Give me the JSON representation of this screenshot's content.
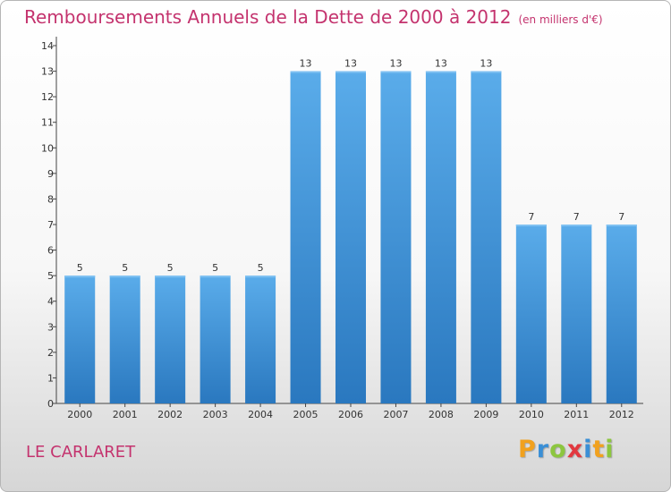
{
  "chart_data": {
    "type": "bar",
    "title": "Remboursements Annuels de la Dette de 2000 à 2012",
    "unit_note": "(en milliers d'€)",
    "categories": [
      "2000",
      "2001",
      "2002",
      "2003",
      "2004",
      "2005",
      "2006",
      "2007",
      "2008",
      "2009",
      "2010",
      "2011",
      "2012"
    ],
    "values": [
      5,
      5,
      5,
      5,
      5,
      13,
      13,
      13,
      13,
      13,
      7,
      7,
      7
    ],
    "data_labels": [
      "5",
      "5",
      "5",
      "5",
      "5",
      "13",
      "13",
      "13",
      "13",
      "13",
      "7",
      "7",
      "7"
    ],
    "y_ticks": [
      "0",
      "1",
      "2",
      "3",
      "4",
      "5",
      "6",
      "7",
      "8",
      "9",
      "10",
      "11",
      "12",
      "13",
      "14"
    ],
    "ylim": [
      0,
      14
    ],
    "grid": false,
    "bar_color": "#3a8fd6",
    "xlabel": "",
    "ylabel": ""
  },
  "commune": "LE CARLARET",
  "logo": {
    "letters": [
      "P",
      "r",
      "o",
      "x",
      "i",
      "t",
      "i"
    ],
    "colors": [
      "#f1a11e",
      "#3a8fd6",
      "#8cc63f",
      "#e2383f",
      "#3a8fd6",
      "#f1a11e",
      "#8cc63f"
    ]
  },
  "colors": {
    "title": "#c4336e",
    "axis": "#444444"
  }
}
